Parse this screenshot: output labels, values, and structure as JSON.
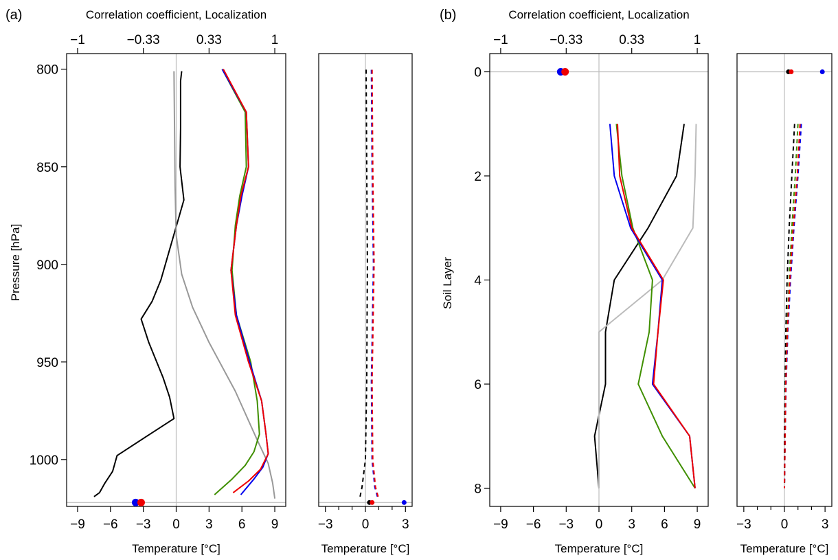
{
  "chart_data": [
    {
      "panel": "(a)",
      "type": "line",
      "xlabel_top": "Correlation coefficient, Localization",
      "xlabel_bottom": "Temperature [°C]",
      "ylabel": "Pressure [hPa]",
      "x_top_ticks": [
        "−1",
        "−0.33",
        "0.33",
        "1"
      ],
      "x_bottom_ticks": [
        "−9",
        "−6",
        "−3",
        "0",
        "3",
        "6",
        "9"
      ],
      "y_ticks": [
        "800",
        "850",
        "900",
        "950",
        "1000"
      ],
      "xlim": [
        -10,
        10
      ],
      "ylim": [
        792,
        1024
      ],
      "y_inverted": true,
      "ref_line_y": 1022,
      "series": [
        {
          "color": "#000000",
          "x": [
            -7.5,
            -7.0,
            -6.5,
            -5.8,
            -5.4,
            -2.4,
            -0.2,
            -0.6,
            -1.2,
            -2.5,
            -3.2,
            -2.2,
            -1.4,
            0.7,
            0.35,
            0.4,
            0.4,
            0.5
          ],
          "y": [
            1019,
            1017,
            1012,
            1006,
            998,
            987,
            979,
            968,
            958,
            940,
            928,
            919,
            908,
            867,
            850,
            830,
            806,
            801
          ]
        },
        {
          "color": "#999999",
          "x": [
            9.0,
            8.8,
            8.4,
            7.4,
            5.4,
            3.0,
            1.5,
            0.5,
            0.0,
            -0.1,
            -0.2
          ],
          "y": [
            1020,
            1012,
            1002,
            990,
            965,
            940,
            922,
            905,
            885,
            860,
            801
          ]
        },
        {
          "color": "#3f8f00",
          "x": [
            3.5,
            5.1,
            6.3,
            7.1,
            7.6,
            7.4,
            6.8,
            5.5,
            5.1,
            5.4,
            5.8,
            6.4,
            6.3,
            4.2
          ],
          "y": [
            1018,
            1010,
            1003,
            996,
            987,
            970,
            950,
            926,
            903,
            880,
            865,
            850,
            822,
            800
          ]
        },
        {
          "color": "#0000ee",
          "x": [
            5.9,
            7.1,
            7.9,
            8.4,
            8.2,
            7.8,
            6.7,
            5.5,
            5.0,
            5.5,
            6.0,
            6.6,
            6.4,
            4.2
          ],
          "y": [
            1018,
            1010,
            1004,
            997,
            987,
            970,
            950,
            926,
            903,
            880,
            865,
            850,
            822,
            800
          ]
        },
        {
          "color": "#ee0000",
          "x": [
            5.2,
            6.6,
            7.7,
            8.4,
            8.2,
            7.8,
            6.6,
            5.4,
            5.0,
            5.5,
            5.9,
            6.6,
            6.4,
            4.3
          ],
          "y": [
            1017,
            1011,
            1005,
            997,
            987,
            970,
            950,
            926,
            903,
            880,
            865,
            850,
            822,
            800
          ]
        }
      ],
      "points": [
        {
          "color": "#0000ee",
          "x": -3.7,
          "y": 1022
        },
        {
          "color": "#ee0000",
          "x": -3.2,
          "y": 1022
        }
      ]
    },
    {
      "panel": "(a) right",
      "type": "line",
      "xlabel_bottom": "Temperature [°C]",
      "x_bottom_ticks": [
        "−3",
        "0",
        "3"
      ],
      "xlim": [
        -3.5,
        3.5
      ],
      "ylim": [
        792,
        1024
      ],
      "y_inverted": true,
      "ref_line_y": 1022,
      "dashed_series": [
        {
          "color": "#000000",
          "x": [
            -0.4,
            -0.25,
            0.0,
            0.1,
            0.15,
            0.1,
            0.05
          ],
          "y": [
            1019,
            1014,
            1000,
            960,
            900,
            850,
            800
          ]
        },
        {
          "color": "#0000ee",
          "x": [
            0.9,
            0.7,
            0.5,
            0.45,
            0.6,
            0.5,
            0.45
          ],
          "y": [
            1019,
            1014,
            1000,
            960,
            900,
            850,
            800
          ]
        },
        {
          "color": "#ee0000",
          "x": [
            0.95,
            0.75,
            0.55,
            0.5,
            0.65,
            0.55,
            0.5
          ],
          "y": [
            1019,
            1014,
            1000,
            960,
            900,
            850,
            800
          ]
        }
      ],
      "points": [
        {
          "color": "#000000",
          "x": 0.3,
          "y": 1022
        },
        {
          "color": "#ee0000",
          "x": 0.5,
          "y": 1022
        },
        {
          "color": "#0000ee",
          "x": 2.9,
          "y": 1022
        }
      ]
    },
    {
      "panel": "(b)",
      "type": "line",
      "xlabel_top": "Correlation coefficient, Localization",
      "xlabel_bottom": "Temperature [°C]",
      "ylabel": "Soil Layer",
      "x_top_ticks": [
        "−1",
        "−0.33",
        "0.33",
        "1"
      ],
      "x_bottom_ticks": [
        "−9",
        "−6",
        "−3",
        "0",
        "3",
        "6",
        "9"
      ],
      "y_ticks": [
        "0",
        "2",
        "4",
        "6",
        "8"
      ],
      "xlim": [
        -10,
        10
      ],
      "ylim": [
        -0.35,
        8.35
      ],
      "y_inverted": true,
      "ref_line_y": 0,
      "series": [
        {
          "color": "#000000",
          "x": [
            7.8,
            7.1,
            4.5,
            1.4,
            0.6,
            0.6,
            -0.4,
            0.0
          ],
          "y": [
            1,
            2,
            3,
            4,
            5,
            6,
            7,
            8
          ]
        },
        {
          "color": "#bbbbbb",
          "x": [
            8.9,
            8.8,
            8.6,
            5.8,
            0.0,
            0.0,
            0.0,
            0.0
          ],
          "y": [
            1,
            2,
            3,
            4,
            5,
            6,
            7,
            8
          ]
        },
        {
          "color": "#3f8f00",
          "x": [
            1.6,
            2.1,
            3.1,
            4.9,
            4.6,
            3.6,
            5.8,
            8.8
          ],
          "y": [
            1,
            2,
            3,
            4,
            5,
            6,
            7,
            8
          ]
        },
        {
          "color": "#0000ee",
          "x": [
            1.0,
            1.4,
            2.9,
            5.8,
            5.4,
            4.9,
            8.3,
            8.8
          ],
          "y": [
            1,
            2,
            3,
            4,
            5,
            6,
            7,
            8
          ]
        },
        {
          "color": "#ee0000",
          "x": [
            1.7,
            1.9,
            3.0,
            5.9,
            5.4,
            5.0,
            8.3,
            8.8
          ],
          "y": [
            1,
            2,
            3,
            4,
            5,
            6,
            7,
            8
          ]
        }
      ],
      "points": [
        {
          "color": "#0000ee",
          "x": -3.5,
          "y": 0
        },
        {
          "color": "#ee0000",
          "x": -3.1,
          "y": 0
        }
      ]
    },
    {
      "panel": "(b) right",
      "type": "line",
      "xlabel_bottom": "Temperature [°C]",
      "x_bottom_ticks": [
        "−3",
        "0",
        "3"
      ],
      "xlim": [
        -3.5,
        3.5
      ],
      "ylim": [
        -0.35,
        8.35
      ],
      "y_inverted": true,
      "ref_line_y": 0,
      "dashed_series": [
        {
          "color": "#000000",
          "x": [
            0.75,
            0.55,
            0.35,
            0.2,
            0.1,
            0.05,
            0.0,
            0.0
          ],
          "y": [
            1,
            2,
            3,
            4,
            5,
            6,
            7,
            8
          ]
        },
        {
          "color": "#3f8f00",
          "x": [
            1.0,
            0.8,
            0.55,
            0.35,
            0.2,
            0.1,
            0.05,
            0.0
          ],
          "y": [
            1,
            2,
            3,
            4,
            5,
            6,
            7,
            8
          ]
        },
        {
          "color": "#0000ee",
          "x": [
            1.25,
            1.0,
            0.7,
            0.45,
            0.25,
            0.12,
            0.05,
            0.0
          ],
          "y": [
            1,
            2,
            3,
            4,
            5,
            6,
            7,
            8
          ]
        },
        {
          "color": "#ee0000",
          "x": [
            1.15,
            0.95,
            0.65,
            0.4,
            0.22,
            0.1,
            0.05,
            0.0
          ],
          "y": [
            1,
            2,
            3,
            4,
            5,
            6,
            7,
            8
          ]
        }
      ],
      "points": [
        {
          "color": "#000000",
          "x": 0.3,
          "y": 0
        },
        {
          "color": "#ee0000",
          "x": 0.5,
          "y": 0
        },
        {
          "color": "#0000ee",
          "x": 2.8,
          "y": 0
        }
      ]
    }
  ]
}
